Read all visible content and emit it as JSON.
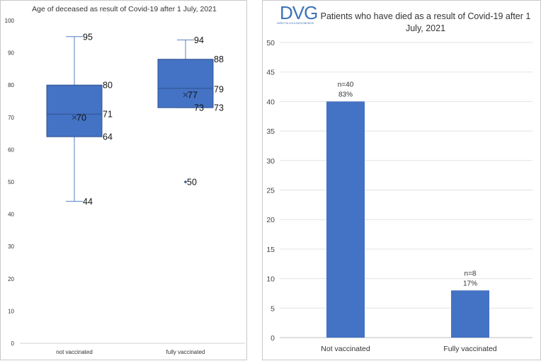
{
  "charts": {
    "boxplot": {
      "chart_data": {
        "type": "boxplot",
        "title": "Age of deceased as result of Covid-19 after 1 July, 2021",
        "ylim": [
          0,
          100
        ],
        "yticks": [
          0,
          10,
          20,
          30,
          40,
          50,
          60,
          70,
          80,
          90,
          100
        ],
        "categories": [
          "not vaccinated",
          "fully vaccinated"
        ],
        "boxes": [
          {
            "category": "not vaccinated",
            "min": 44,
            "q1": 64,
            "median": 71,
            "mean": 70,
            "q3": 80,
            "max": 95,
            "labels": {
              "max": "95",
              "q3": "80",
              "median": "71",
              "mean": "70",
              "q1": "64",
              "min": "44"
            }
          },
          {
            "category": "fully vaccinated",
            "min": 73,
            "q1": 73,
            "median": 79,
            "mean": 77,
            "q3": 88,
            "max": 94,
            "outliers": [
              50
            ],
            "labels": {
              "max": "94",
              "q3": "88",
              "median": "79",
              "mean": "77",
              "q1": "73",
              "min": "73",
              "outlier": "50"
            }
          }
        ],
        "color": "#4472c4",
        "grid": false
      }
    },
    "bar": {
      "chart_data": {
        "type": "bar",
        "title": "Patients who have died as a result of Covid-19 after 1 July, 2021",
        "categories": [
          "Not vaccinated",
          "Fully vaccinated"
        ],
        "values": [
          40,
          8
        ],
        "data_labels": [
          [
            "n=40",
            "83%"
          ],
          [
            "n=8",
            "17%"
          ]
        ],
        "ylim": [
          0,
          50
        ],
        "yticks": [
          0,
          5,
          10,
          15,
          20,
          25,
          30,
          35,
          40,
          45,
          50
        ],
        "color": "#4472c4",
        "grid": true
      }
    }
  },
  "logo": {
    "text": "DVG",
    "subtitle": "DIRECTIA VOLKSGEZONDHEID",
    "color": "#3e73b8"
  }
}
